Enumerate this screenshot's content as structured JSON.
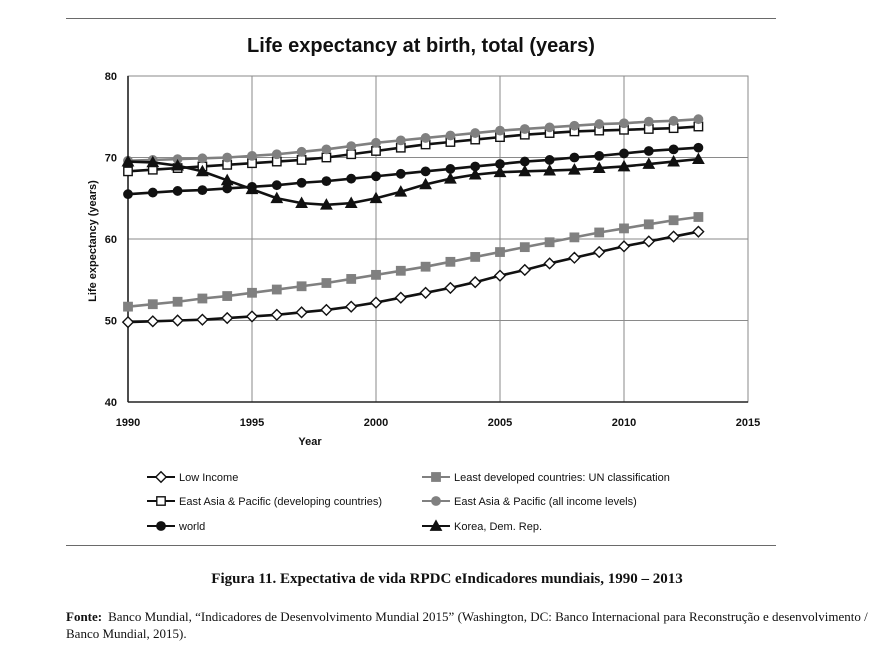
{
  "chart_data": {
    "type": "line",
    "title": "Life expectancy at birth, total (years)",
    "xlabel": "Year",
    "ylabel": "Life expectancy (years)",
    "xlim": [
      1990,
      2015
    ],
    "ylim": [
      40,
      80
    ],
    "xticks": [
      1990,
      1995,
      2000,
      2005,
      2010,
      2015
    ],
    "yticks": [
      40,
      50,
      60,
      70,
      80
    ],
    "grid": true,
    "legend_position": "bottom",
    "x": [
      1990,
      1991,
      1992,
      1993,
      1994,
      1995,
      1996,
      1997,
      1998,
      1999,
      2000,
      2001,
      2002,
      2003,
      2004,
      2005,
      2006,
      2007,
      2008,
      2009,
      2010,
      2011,
      2012,
      2013
    ],
    "series": [
      {
        "name": "Low Income",
        "marker": "diamond",
        "color": "#111111",
        "markerFill": "#ffffff",
        "values": [
          49.8,
          49.9,
          50.0,
          50.1,
          50.3,
          50.5,
          50.7,
          51.0,
          51.3,
          51.7,
          52.2,
          52.8,
          53.4,
          54.0,
          54.7,
          55.5,
          56.2,
          57.0,
          57.7,
          58.4,
          59.1,
          59.7,
          60.3,
          60.9
        ]
      },
      {
        "name": "Least developed countries: UN classification",
        "marker": "square",
        "color": "#808080",
        "markerFill": "#808080",
        "values": [
          51.7,
          52.0,
          52.3,
          52.7,
          53.0,
          53.4,
          53.8,
          54.2,
          54.6,
          55.1,
          55.6,
          56.1,
          56.6,
          57.2,
          57.8,
          58.4,
          59.0,
          59.6,
          60.2,
          60.8,
          61.3,
          61.8,
          62.3,
          62.7
        ]
      },
      {
        "name": "East Asia & Pacific (developing countries)",
        "marker": "square",
        "color": "#111111",
        "markerFill": "#ffffff",
        "values": [
          68.3,
          68.5,
          68.7,
          68.9,
          69.1,
          69.3,
          69.5,
          69.7,
          70.0,
          70.4,
          70.8,
          71.2,
          71.6,
          71.9,
          72.2,
          72.5,
          72.8,
          73.0,
          73.2,
          73.3,
          73.4,
          73.5,
          73.6,
          73.8
        ]
      },
      {
        "name": "East Asia & Pacific (all income levels)",
        "marker": "circle",
        "color": "#808080",
        "markerFill": "#808080",
        "values": [
          69.6,
          69.7,
          69.8,
          69.9,
          70.0,
          70.2,
          70.4,
          70.7,
          71.0,
          71.4,
          71.8,
          72.1,
          72.4,
          72.7,
          73.0,
          73.3,
          73.5,
          73.7,
          73.9,
          74.1,
          74.2,
          74.4,
          74.5,
          74.7
        ]
      },
      {
        "name": "world",
        "marker": "circle",
        "color": "#111111",
        "markerFill": "#111111",
        "values": [
          65.5,
          65.7,
          65.9,
          66.0,
          66.2,
          66.4,
          66.6,
          66.9,
          67.1,
          67.4,
          67.7,
          68.0,
          68.3,
          68.6,
          68.9,
          69.2,
          69.5,
          69.7,
          70.0,
          70.2,
          70.5,
          70.8,
          71.0,
          71.2
        ]
      },
      {
        "name": "Korea, Dem. Rep.",
        "marker": "triangle",
        "color": "#111111",
        "markerFill": "#111111",
        "values": [
          69.5,
          69.4,
          69.0,
          68.3,
          67.2,
          66.1,
          65.0,
          64.4,
          64.2,
          64.4,
          65.0,
          65.8,
          66.7,
          67.4,
          67.9,
          68.2,
          68.3,
          68.4,
          68.5,
          68.7,
          68.9,
          69.2,
          69.5,
          69.8
        ]
      }
    ]
  },
  "caption": {
    "figure": "Figura 11. Expectativa de vida RPDC eIndicadores mundiais, 1990 – 2013"
  },
  "source": {
    "label": "Fonte:",
    "text": "Banco Mundial, “Indicadores de Desenvolvimento Mundial 2015” (Washington, DC: Banco Internacional para Reconstrução e desenvolvimento / Banco Mundial, 2015)."
  }
}
